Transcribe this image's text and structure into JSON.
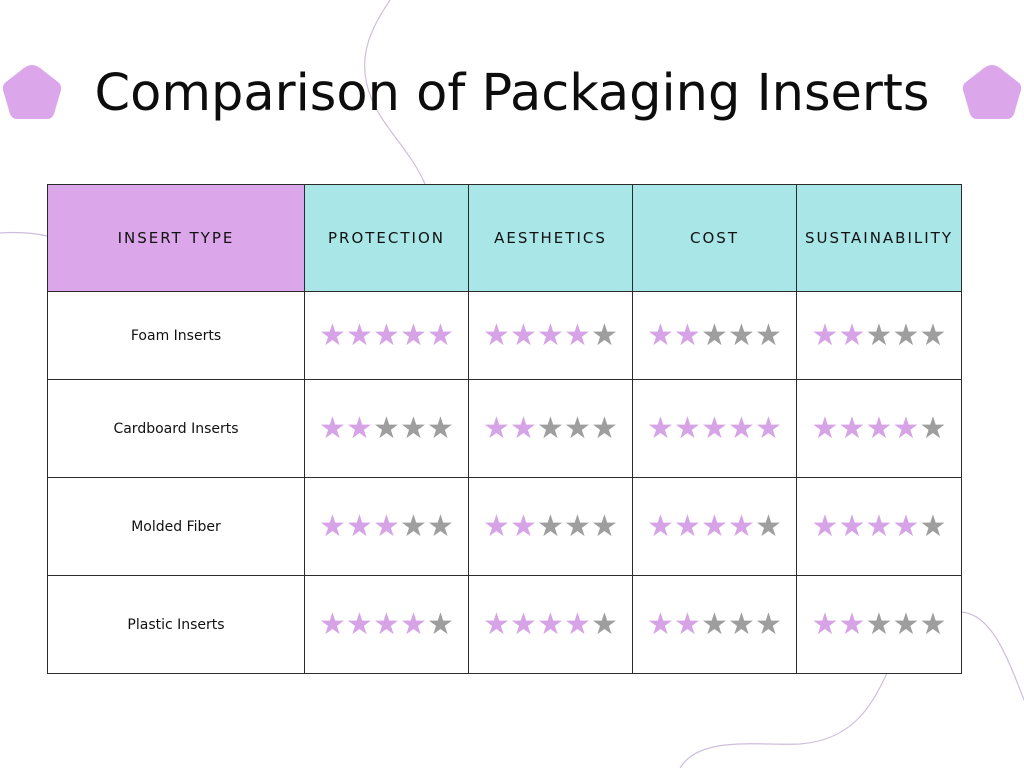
{
  "title": "Comparison of Packaging Inserts",
  "colors": {
    "accent_purple": "#dba7ea",
    "header_cyan": "#a8e6e8",
    "star_filled": "#d6a3e6",
    "star_empty": "#9e9e9e",
    "decor_line": "#c8b8d8"
  },
  "icons": {
    "decoration": "pentagon-shape",
    "rating": "star-icon"
  },
  "table": {
    "headers": [
      "INSERT TYPE",
      "PROTECTION",
      "AESTHETICS",
      "COST",
      "SUSTAINABILITY"
    ],
    "max_rating": 5,
    "rows": [
      {
        "name": "Foam Inserts",
        "ratings": [
          5,
          4,
          2,
          2
        ]
      },
      {
        "name": "Cardboard Inserts",
        "ratings": [
          2,
          2,
          5,
          4
        ]
      },
      {
        "name": "Molded Fiber",
        "ratings": [
          3,
          2,
          4,
          4
        ]
      },
      {
        "name": "Plastic Inserts",
        "ratings": [
          4,
          4,
          2,
          2
        ]
      }
    ]
  }
}
